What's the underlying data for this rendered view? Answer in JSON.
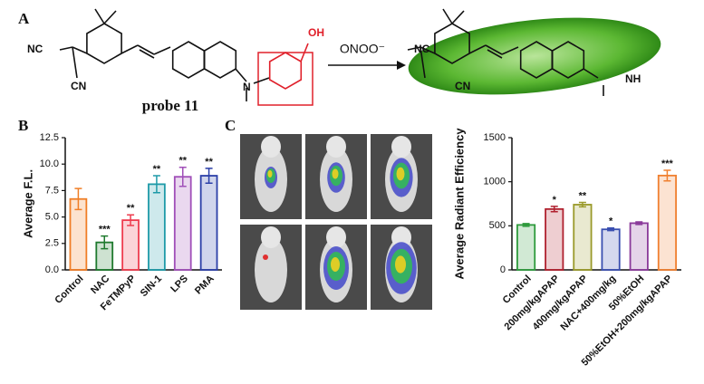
{
  "panel_a": {
    "label": "A",
    "probe_atoms": [
      "NC",
      "CN",
      "N",
      "OH"
    ],
    "probe_name": "probe 11",
    "reagent": "ONOO⁻",
    "product_atoms": [
      "NC",
      "CN",
      "NH"
    ]
  },
  "panel_b": {
    "label": "B"
  },
  "panel_c": {
    "label": "C"
  },
  "chart_data": [
    {
      "type": "bar",
      "ylabel": "Average F.L.",
      "categories": [
        "Control",
        "NAC",
        "FeTMPyP",
        "SIN-1",
        "LPS",
        "PMA"
      ],
      "values": [
        6.7,
        2.6,
        4.7,
        8.1,
        8.8,
        8.9
      ],
      "errors": [
        1.0,
        0.6,
        0.5,
        0.8,
        0.9,
        0.7
      ],
      "significance": [
        null,
        "***",
        "**",
        "**",
        "**",
        "**"
      ],
      "colors": [
        "#f07e26",
        "#1f7a2e",
        "#ee3c4e",
        "#1e9aa8",
        "#a04fb8",
        "#2b3fa8"
      ],
      "ylim": [
        0,
        12.5
      ],
      "yticks": [
        {
          "value": 0,
          "label": "0.0"
        },
        2.5,
        {
          "value": 5,
          "label": "5.0"
        },
        7.5,
        {
          "value": 10,
          "label": "10.0"
        },
        12.5
      ]
    },
    {
      "type": "bar",
      "ylabel": "Average Radiant Efficiency",
      "categories": [
        "Control",
        "200mg/kgAPAP",
        "400mg/kgAPAP",
        "NAC+400mg/kg",
        "50%EtOH",
        "50%EtOH+200mg/kgAPAP"
      ],
      "values": [
        510,
        690,
        740,
        460,
        530,
        1070
      ],
      "errors": [
        15,
        30,
        25,
        15,
        15,
        60
      ],
      "significance": [
        null,
        "*",
        "**",
        "*",
        null,
        "***"
      ],
      "colors": [
        "#2e9a3c",
        "#b0202e",
        "#9a9a2a",
        "#3a4fb0",
        "#8a3a9a",
        "#f08030"
      ],
      "ylim": [
        0,
        1500
      ],
      "yticks": [
        0,
        500,
        1000,
        1500
      ]
    }
  ]
}
